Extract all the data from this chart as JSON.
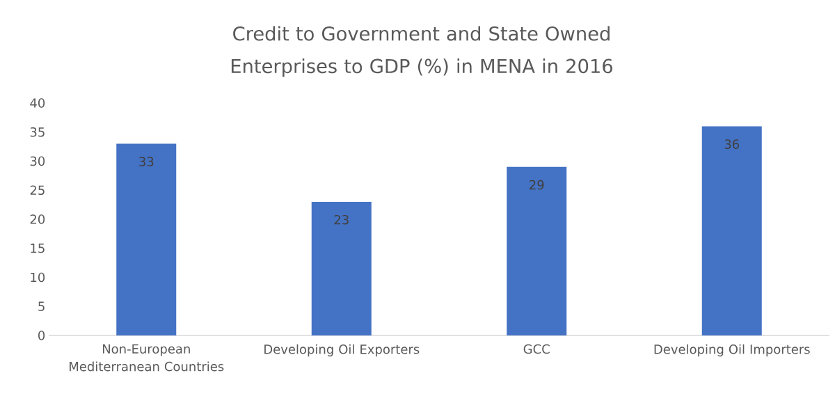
{
  "chart_data": {
    "type": "bar",
    "title": "Credit to Government and State Owned Enterprises to GDP (%) in MENA in 2016",
    "categories": [
      "Non-European Mediterranean Countries",
      "Developing Oil Exporters",
      "GCC",
      "Developing Oil Importers"
    ],
    "values": [
      33,
      23,
      29,
      36
    ],
    "color": "#4472c4",
    "ylim": [
      0,
      40
    ],
    "yticks": [
      0,
      5,
      10,
      15,
      20,
      25,
      30,
      35,
      40
    ],
    "data_labels": true
  }
}
